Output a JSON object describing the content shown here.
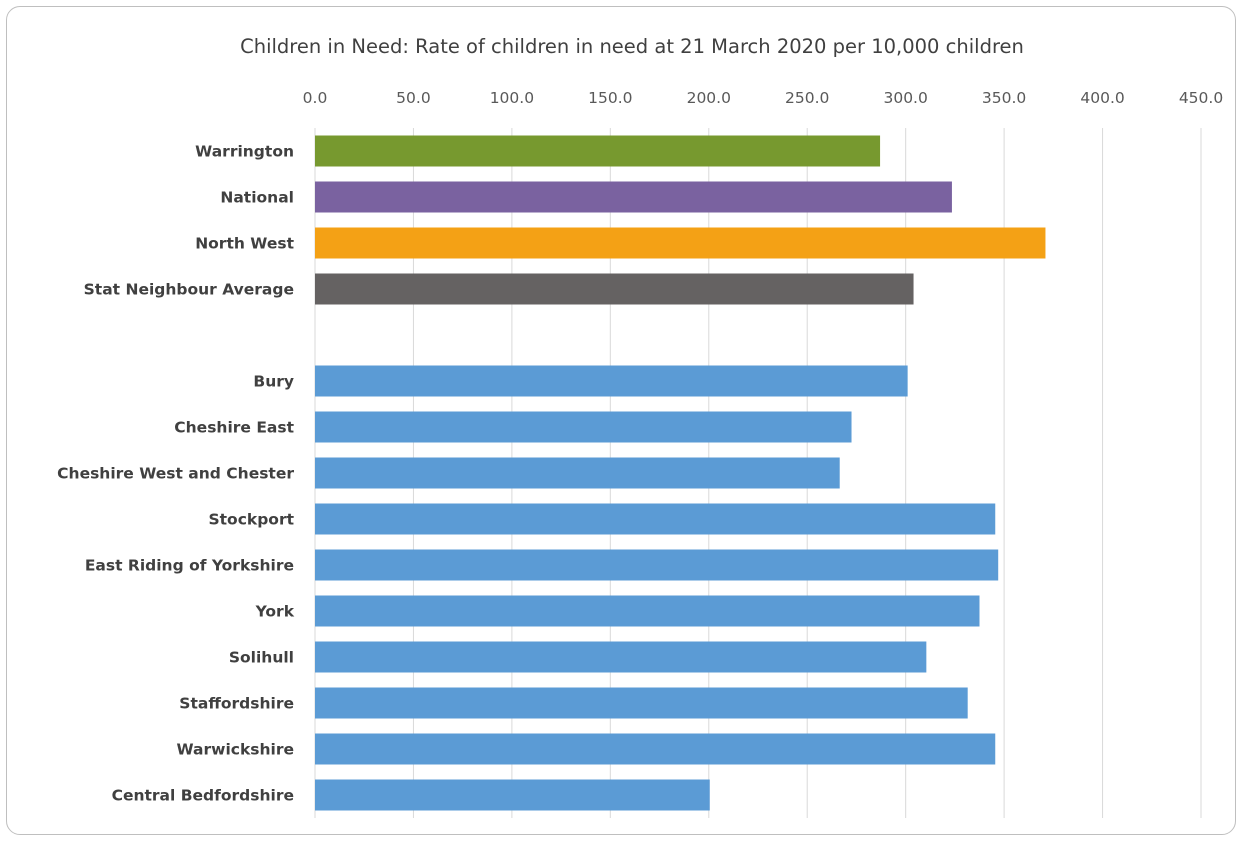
{
  "chart_data": {
    "type": "bar",
    "orientation": "horizontal",
    "title": "Children in Need: Rate of children in need at 21 March 2020 per 10,000 children",
    "xlabel": "",
    "ylabel": "",
    "xlim": [
      0,
      450
    ],
    "x_ticks": [
      "0.0",
      "50.0",
      "100.0",
      "150.0",
      "200.0",
      "250.0",
      "300.0",
      "350.0",
      "400.0",
      "450.0"
    ],
    "x_tick_values": [
      0,
      50,
      100,
      150,
      200,
      250,
      300,
      350,
      400,
      450
    ],
    "x_axis_position": "top",
    "grid": true,
    "legend": "none",
    "categories": [
      "Warrington",
      "National",
      "North West",
      "Stat Neighbour Average",
      "",
      "Bury",
      "Cheshire East",
      "Cheshire West and Chester",
      "Stockport",
      "East Riding of Yorkshire",
      "York",
      "Solihull",
      "Staffordshire",
      "Warwickshire",
      "Central Bedfordshire"
    ],
    "values": [
      287,
      323.5,
      371,
      304,
      null,
      301,
      272.5,
      266.5,
      345.5,
      347,
      337.5,
      310.5,
      331.5,
      345.5,
      200.5
    ],
    "colors": [
      "#77992f",
      "#7a62a0",
      "#f4a115",
      "#656262",
      "",
      "#5b9bd5",
      "#5b9bd5",
      "#5b9bd5",
      "#5b9bd5",
      "#5b9bd5",
      "#5b9bd5",
      "#5b9bd5",
      "#5b9bd5",
      "#5b9bd5",
      "#5b9bd5"
    ]
  }
}
